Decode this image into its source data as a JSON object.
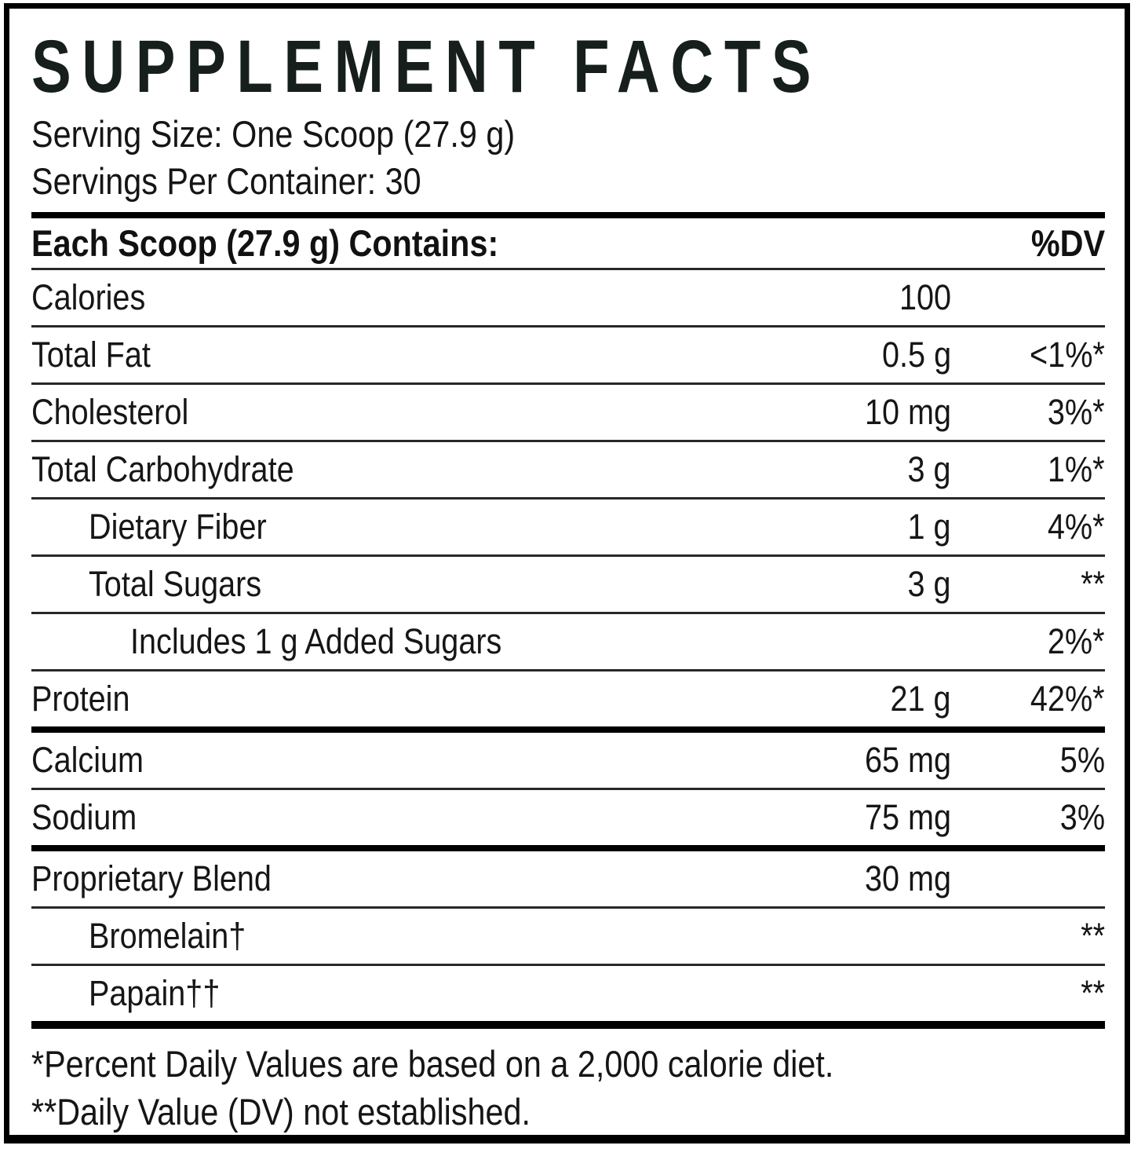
{
  "label": {
    "title": "SUPPLEMENT FACTS",
    "serving_size": "Serving Size: One Scoop (27.9 g)",
    "servings_per_container": "Servings Per Container: 30",
    "header": {
      "left": "Each Scoop (27.9 g) Contains:",
      "right": "%DV"
    },
    "rows": [
      {
        "name": "Calories",
        "amount": "100",
        "dv": ""
      },
      {
        "name": "Total Fat",
        "amount": "0.5 g",
        "dv": "<1%*"
      },
      {
        "name": "Cholesterol",
        "amount": "10 mg",
        "dv": "3%*"
      },
      {
        "name": "Total Carbohydrate",
        "amount": "3 g",
        "dv": "1%*"
      },
      {
        "name": "Dietary Fiber",
        "amount": "1 g",
        "dv": "4%*"
      },
      {
        "name": "Total Sugars",
        "amount": "3 g",
        "dv": "**"
      },
      {
        "name": "Includes 1 g Added Sugars",
        "amount": "",
        "dv": "2%*"
      },
      {
        "name": "Protein",
        "amount": "21 g",
        "dv": "42%*"
      },
      {
        "name": "Calcium",
        "amount": "65 mg",
        "dv": "5%"
      },
      {
        "name": "Sodium",
        "amount": "75 mg",
        "dv": "3%"
      },
      {
        "name": "Proprietary Blend",
        "amount": "30 mg",
        "dv": ""
      },
      {
        "name": "Bromelain†",
        "amount": "",
        "dv": "**"
      },
      {
        "name": "Papain††",
        "amount": "",
        "dv": "**"
      }
    ],
    "footnotes": [
      "*Percent Daily Values are based on a 2,000 calorie diet.",
      "**Daily Value (DV) not established."
    ],
    "colors": {
      "text": "#161616",
      "title": "#161f1b",
      "background": "#ffffff",
      "border": "#000000"
    }
  }
}
